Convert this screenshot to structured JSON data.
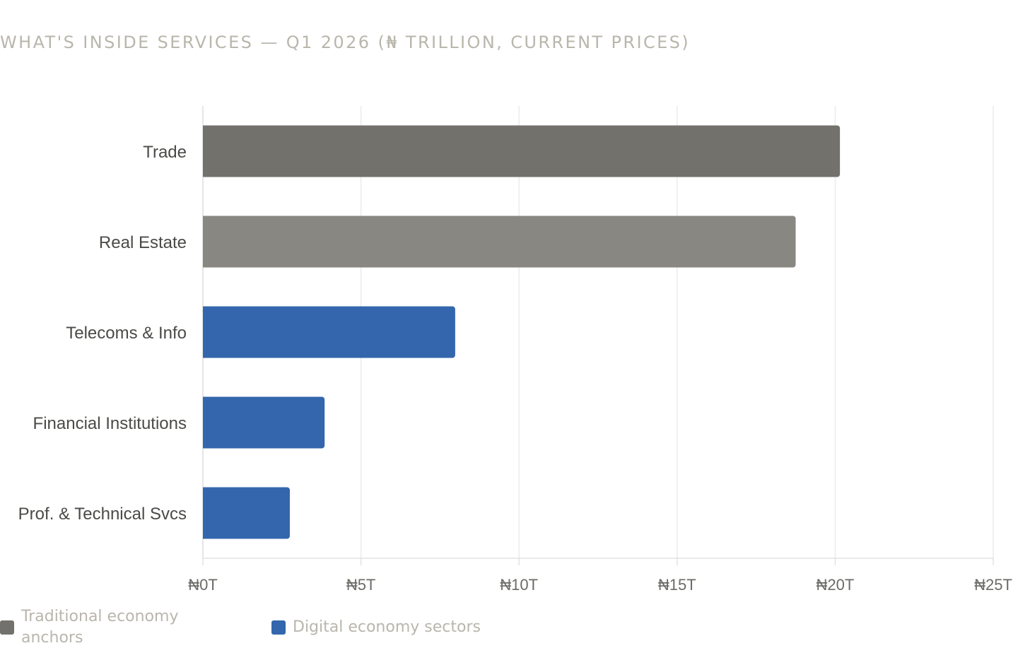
{
  "chart_data": {
    "type": "bar",
    "orientation": "horizontal",
    "title": "WHAT'S INSIDE SERVICES — Q1 2026 (₦ TRILLION, CURRENT PRICES)",
    "categories": [
      "Trade",
      "Real Estate",
      "Telecoms & Info",
      "Financial Institutions",
      "Prof. & Technical Svcs"
    ],
    "values": [
      20.15,
      18.75,
      7.98,
      3.85,
      2.75
    ],
    "bar_colors": [
      "#72716c",
      "#888782",
      "#3366ac",
      "#3366ac",
      "#3366ac"
    ],
    "xlim": [
      0,
      25
    ],
    "xticks": [
      0,
      5,
      10,
      15,
      20,
      25
    ],
    "xtick_labels": [
      "₦0T",
      "₦5T",
      "₦10T",
      "₦15T",
      "₦20T",
      "₦25T"
    ],
    "grid": true,
    "legend_position": "bottom-left",
    "legend": [
      {
        "label": "Traditional economy anchors",
        "color": "#72716c"
      },
      {
        "label": "Digital economy sectors",
        "color": "#3366ac"
      }
    ]
  }
}
